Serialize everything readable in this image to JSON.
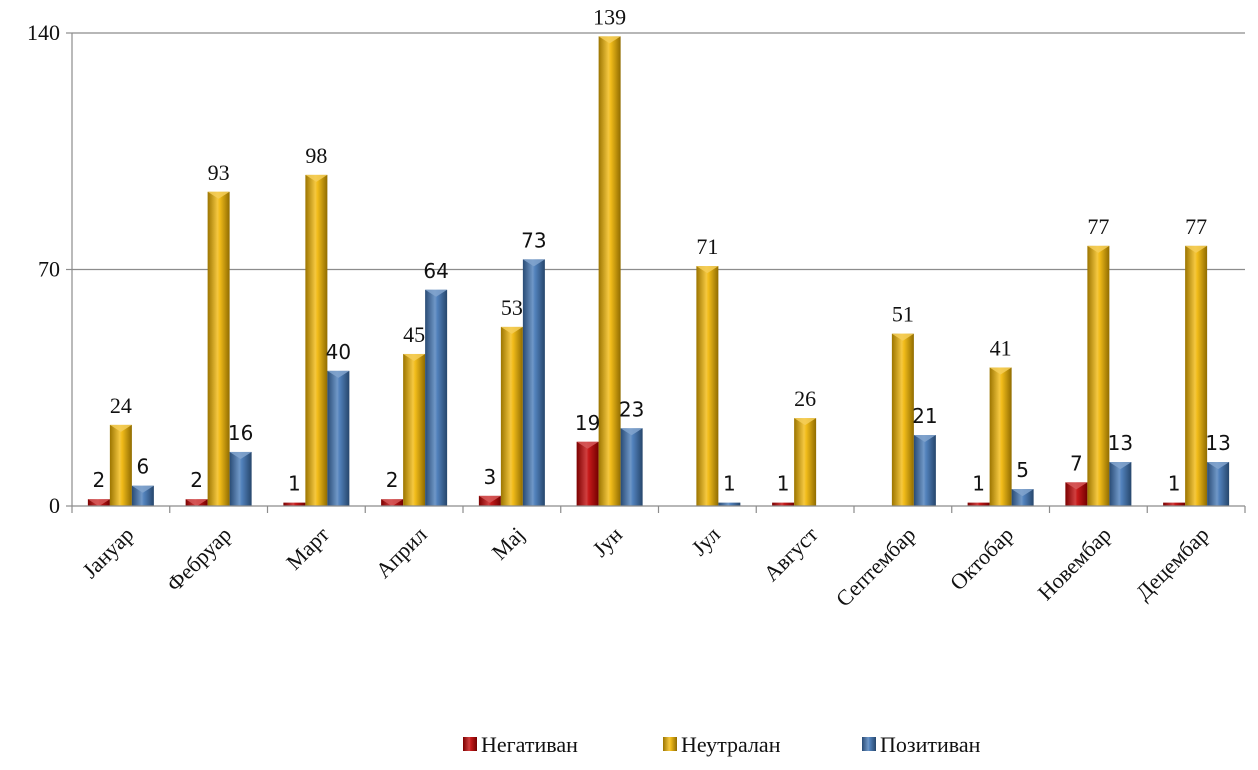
{
  "chart_data": {
    "type": "bar",
    "categories": [
      "Јануар",
      "Фебруар",
      "Март",
      "Април",
      "Мај",
      "Јун",
      "Јул",
      "Август",
      "Септембар",
      "Октобар",
      "Новембар",
      "Децембар"
    ],
    "series": [
      {
        "name": "Негативан",
        "color": "#c00000",
        "values": [
          2,
          2,
          1,
          2,
          3,
          19,
          null,
          1,
          null,
          1,
          7,
          1
        ]
      },
      {
        "name": "Неутралан",
        "color": "#f0b400",
        "values": [
          24,
          93,
          98,
          45,
          53,
          139,
          71,
          26,
          51,
          41,
          77,
          77
        ]
      },
      {
        "name": "Позитиван",
        "color": "#3f74b4",
        "values": [
          6,
          16,
          40,
          64,
          73,
          23,
          1,
          null,
          21,
          5,
          13,
          13
        ]
      }
    ],
    "yticks": [
      "0",
      "70",
      "140"
    ],
    "ylim": [
      0,
      140
    ],
    "grid": true,
    "legend_position": "bottom"
  }
}
